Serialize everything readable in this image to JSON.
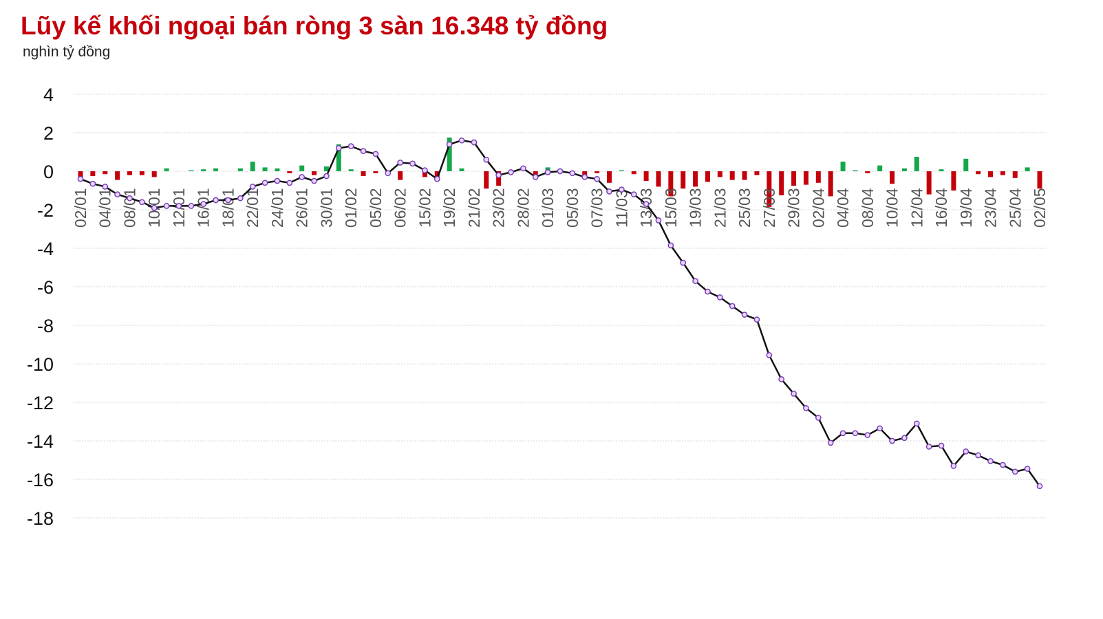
{
  "chart_data": {
    "type": "bar-line",
    "title": "Lũy kế khối ngoại bán ròng 3 sàn 16.348 tỷ đồng",
    "subtitle": "nghìn tỷ đồng",
    "categories": [
      "02/01",
      null,
      "04/01",
      null,
      "08/01",
      null,
      "10/01",
      null,
      "12/01",
      null,
      "16/01",
      null,
      "18/01",
      null,
      "22/01",
      null,
      "24/01",
      null,
      "26/01",
      null,
      "30/01",
      null,
      "01/02",
      null,
      "05/02",
      null,
      "06/02",
      null,
      "15/02",
      null,
      "19/02",
      null,
      "21/02",
      null,
      "23/02",
      null,
      "28/02",
      null,
      "01/03",
      null,
      "05/03",
      null,
      "07/03",
      null,
      "11/03",
      null,
      "13/03",
      null,
      "15/03",
      null,
      "19/03",
      null,
      "21/03",
      null,
      "25/03",
      null,
      "27/03",
      null,
      "29/03",
      null,
      "02/04",
      null,
      "04/04",
      null,
      "08/04",
      null,
      "10/04",
      null,
      "12/04",
      null,
      "16/04",
      null,
      "19/04",
      null,
      "23/04",
      null,
      "25/04",
      null,
      "02/05"
    ],
    "bars": {
      "color_positive": "#14a84b",
      "color_negative": "#c4000b",
      "values": [
        -0.4,
        -0.25,
        -0.15,
        -0.45,
        -0.2,
        -0.2,
        -0.3,
        0.15,
        0,
        0.05,
        0.1,
        0.15,
        0,
        0.15,
        0.5,
        0.2,
        0.15,
        -0.1,
        0.3,
        -0.2,
        0.25,
        1.4,
        0.1,
        -0.25,
        -0.1,
        -0.05,
        -0.45,
        0,
        -0.3,
        -0.35,
        1.75,
        0.15,
        0,
        -0.9,
        -0.75,
        0.05,
        0,
        -0.2,
        0.2,
        0.05,
        -0.1,
        -0.25,
        -0.1,
        -0.6,
        0.05,
        -0.15,
        -0.5,
        -0.8,
        -1.3,
        -0.9,
        -0.8,
        -0.55,
        -0.3,
        -0.45,
        -0.45,
        -0.2,
        -1.85,
        -1.25,
        -0.75,
        -0.7,
        -0.6,
        -1.3,
        0.5,
        0.05,
        -0.1,
        0.3,
        -0.65,
        0.15,
        0.75,
        -1.2,
        0.1,
        -1.0,
        0.65,
        -0.15,
        -0.3,
        -0.2,
        -0.35,
        0.2,
        -0.9
      ]
    },
    "line": {
      "color": "#111111",
      "marker_fill": "#e9d8ff",
      "marker_stroke": "#7b3fb5",
      "values": [
        -0.4,
        -0.65,
        -0.8,
        -1.2,
        -1.4,
        -1.6,
        -1.9,
        -1.8,
        -1.8,
        -1.8,
        -1.7,
        -1.5,
        -1.5,
        -1.4,
        -0.8,
        -0.6,
        -0.5,
        -0.6,
        -0.3,
        -0.5,
        -0.25,
        1.2,
        1.3,
        1.05,
        0.9,
        -0.1,
        0.45,
        0.4,
        0.05,
        -0.4,
        1.4,
        1.6,
        1.5,
        0.6,
        -0.2,
        -0.05,
        0.15,
        -0.3,
        -0.05,
        0,
        -0.1,
        -0.3,
        -0.4,
        -1.05,
        -0.95,
        -1.2,
        -1.7,
        -2.55,
        -3.85,
        -4.75,
        -5.7,
        -6.25,
        -6.55,
        -7.0,
        -7.45,
        -7.7,
        -9.55,
        -10.8,
        -11.55,
        -12.3,
        -12.8,
        -14.1,
        -13.6,
        -13.6,
        -13.7,
        -13.35,
        -14.0,
        -13.85,
        -13.1,
        -14.3,
        -14.25,
        -15.3,
        -14.55,
        -14.75,
        -15.05,
        -15.25,
        -15.6,
        -15.45,
        -16.35
      ]
    },
    "ylim": [
      -18,
      4
    ],
    "yticks": [
      4,
      2,
      0,
      -2,
      -4,
      -6,
      -8,
      -10,
      -12,
      -14,
      -16,
      -18
    ],
    "grid": true
  }
}
